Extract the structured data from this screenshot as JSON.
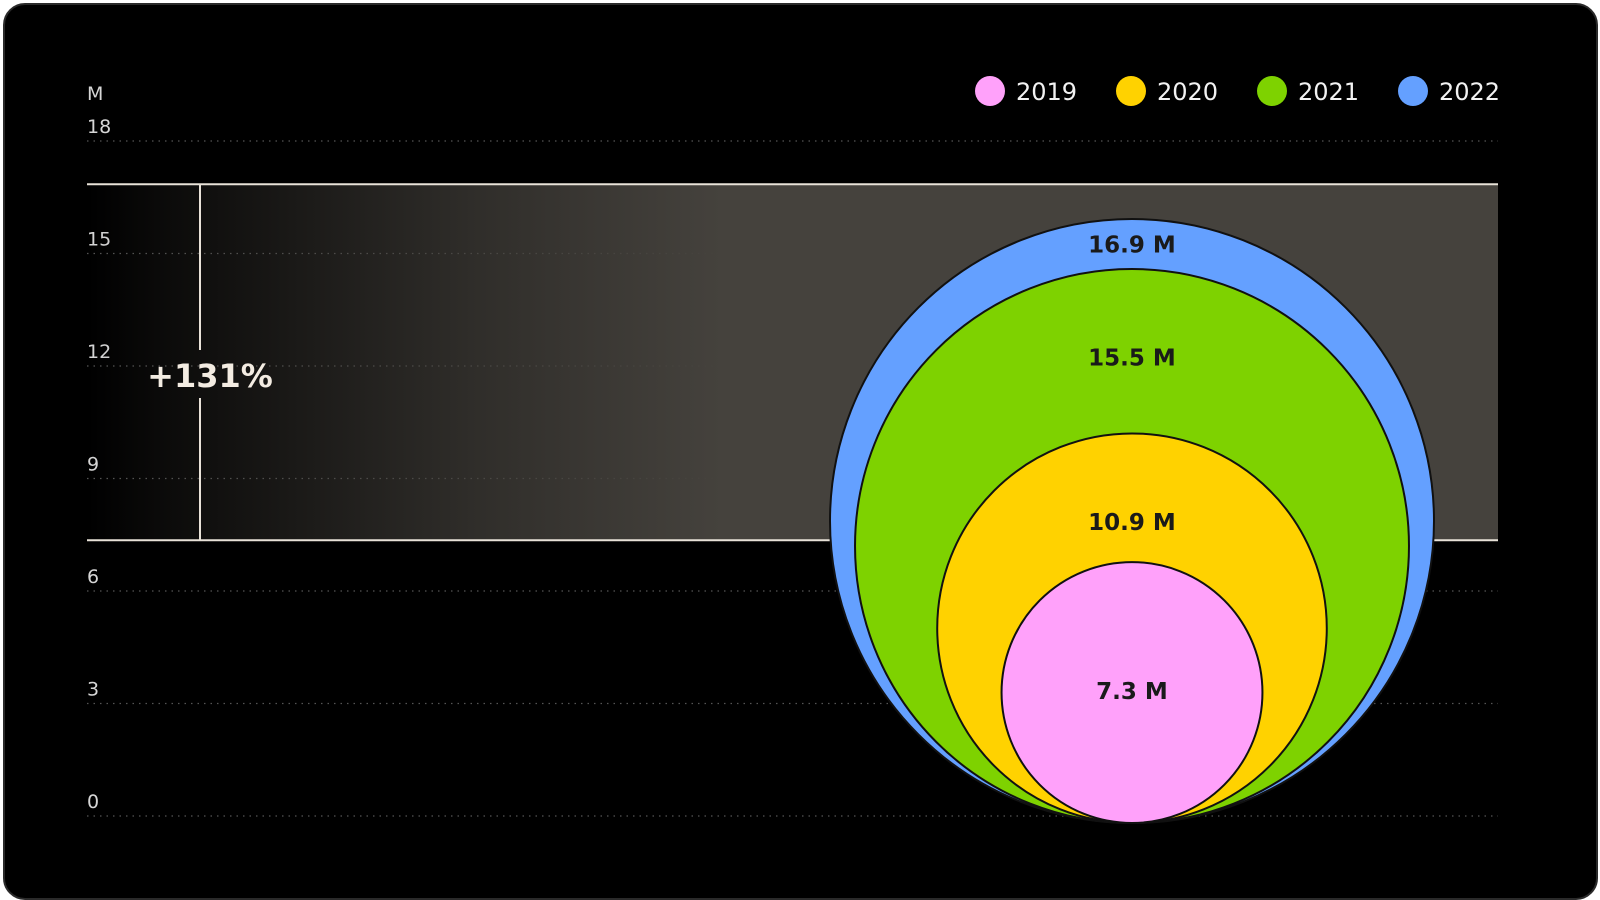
{
  "chart_data": {
    "type": "bubble",
    "y_unit": "M",
    "ylim": [
      0,
      18
    ],
    "y_ticks": [
      "0",
      "3",
      "6",
      "9",
      "12",
      "15",
      "18"
    ],
    "grid": true,
    "legend_position": "top-right",
    "series": [
      {
        "name": "2019",
        "value": 7.3,
        "label": "7.3 M",
        "color": "#ffa1fa"
      },
      {
        "name": "2020",
        "value": 10.9,
        "label": "10.9 M",
        "color": "#ffd200"
      },
      {
        "name": "2021",
        "value": 15.5,
        "label": "15.5 M",
        "color": "#7ed200"
      },
      {
        "name": "2022",
        "value": 16.9,
        "label": "16.9 M",
        "color": "#64a0ff"
      }
    ],
    "annotation": {
      "text": "+131%",
      "from": 7.3,
      "to": 16.9
    }
  },
  "colors": {
    "background": "#000000",
    "band": "#45423d",
    "band_line": "#e8e2d8",
    "grid": "#555555"
  }
}
